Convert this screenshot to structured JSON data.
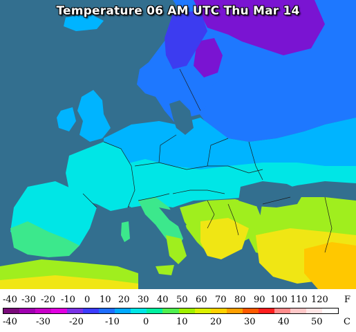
{
  "title": "Temperature 06 AM UTC Thu Mar 14",
  "legend": {
    "fahrenheit_unit": "F",
    "celsius_unit": "C",
    "fahrenheit_ticks": [
      "-40",
      "-30",
      "-20",
      "-10",
      "0",
      "10",
      "20",
      "30",
      "40",
      "50",
      "60",
      "70",
      "80",
      "90",
      "100",
      "110",
      "120"
    ],
    "celsius_ticks": [
      "-40",
      "-30",
      "-20",
      "-10",
      "0",
      "10",
      "20",
      "30",
      "40",
      "50"
    ],
    "scale_colors": [
      "#7a0a7a",
      "#a000b0",
      "#c800c8",
      "#e100e1",
      "#7a32e6",
      "#3c3cff",
      "#1e6eff",
      "#00aaff",
      "#00e6e6",
      "#00f0a0",
      "#50f050",
      "#a0f000",
      "#dcf000",
      "#ffd200",
      "#ffa000",
      "#ff5a00",
      "#ff1e1e",
      "#ff8c8c",
      "#ffc8c8",
      "#ffe6e6",
      "#ffffff"
    ]
  },
  "map": {
    "sea_color": "#336f8f",
    "colors": {
      "purple": "#7a14d2",
      "blue_dark": "#3c3cf0",
      "blue": "#1e78ff",
      "sky": "#00b4ff",
      "cyan": "#00e6e6",
      "green": "#3ce88c",
      "lime": "#a0ee1e",
      "yellow": "#f0e614",
      "orange": "#ffc800"
    }
  }
}
